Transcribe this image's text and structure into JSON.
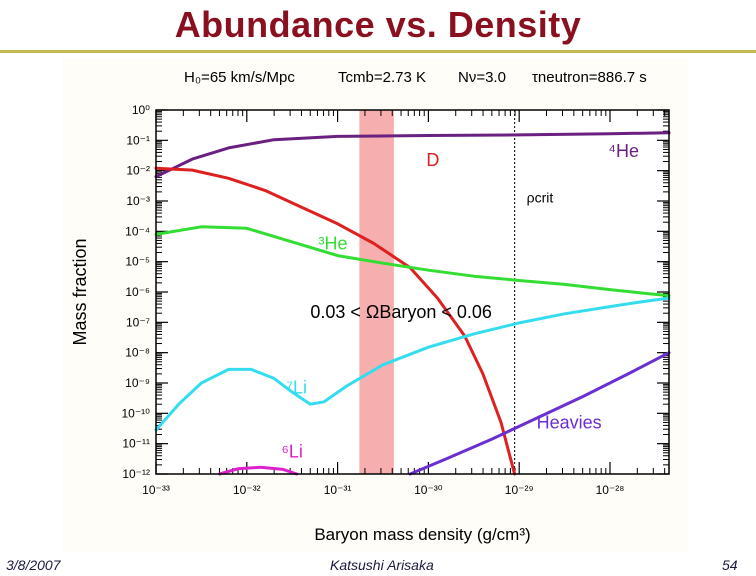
{
  "slide": {
    "title": "Abundance vs. Density",
    "footer_date": "3/8/2007",
    "footer_author": "Katsushi Arisaka",
    "page_number": "54"
  },
  "chart_data": {
    "type": "line",
    "title": "",
    "xlabel": "Baryon mass density (g/cm³)",
    "ylabel": "Mass fraction",
    "x_scale": "log",
    "y_scale": "log",
    "xlim_exp": [
      -33,
      -27.35
    ],
    "ylim_exp": [
      -12,
      0
    ],
    "header": {
      "H0": "H₀=65 km/s/Mpc",
      "Tcmb": "Tcmb=2.73 K",
      "Nnu": "Nν=3.0",
      "tau": "τneutron=886.7 s"
    },
    "x_ticks": [
      {
        "exp": -33,
        "label": "10⁻³³"
      },
      {
        "exp": -32,
        "label": "10⁻³²"
      },
      {
        "exp": -31,
        "label": "10⁻³¹"
      },
      {
        "exp": -30,
        "label": "10⁻³⁰"
      },
      {
        "exp": -29,
        "label": "10⁻²⁹"
      },
      {
        "exp": -28,
        "label": "10⁻²⁸"
      }
    ],
    "y_ticks": [
      {
        "exp": 0,
        "label": "10⁰"
      },
      {
        "exp": -1,
        "label": "10⁻¹"
      },
      {
        "exp": -2,
        "label": "10⁻²"
      },
      {
        "exp": -3,
        "label": "10⁻³"
      },
      {
        "exp": -4,
        "label": "10⁻⁴"
      },
      {
        "exp": -5,
        "label": "10⁻⁵"
      },
      {
        "exp": -6,
        "label": "10⁻⁶"
      },
      {
        "exp": -7,
        "label": "10⁻⁷"
      },
      {
        "exp": -8,
        "label": "10⁻⁸"
      },
      {
        "exp": -9,
        "label": "10⁻⁹"
      },
      {
        "exp": -10,
        "label": "10⁻¹⁰"
      },
      {
        "exp": -11,
        "label": "10⁻¹¹"
      },
      {
        "exp": -12,
        "label": "10⁻¹²"
      }
    ],
    "band": {
      "x_exp": [
        -30.76,
        -30.38
      ],
      "color": "#f4a0a0"
    },
    "rho_crit": {
      "x_exp": -29.05,
      "label": "ρcrit"
    },
    "annotation": "0.03 < ΩBaryon < 0.06",
    "series": [
      {
        "name": "⁴He",
        "color": "#6a2080",
        "points": [
          [
            -33,
            -2.2
          ],
          [
            -32.6,
            -1.62
          ],
          [
            -32.2,
            -1.25
          ],
          [
            -31.7,
            -0.98
          ],
          [
            -31,
            -0.87
          ],
          [
            -30,
            -0.84
          ],
          [
            -29,
            -0.82
          ],
          [
            -28,
            -0.78
          ],
          [
            -27.35,
            -0.75
          ]
        ]
      },
      {
        "name": "D",
        "color": "#dd2020",
        "points": [
          [
            -33,
            -1.92
          ],
          [
            -32.6,
            -1.98
          ],
          [
            -32.2,
            -2.25
          ],
          [
            -31.8,
            -2.65
          ],
          [
            -31.4,
            -3.2
          ],
          [
            -31,
            -3.75
          ],
          [
            -30.6,
            -4.4
          ],
          [
            -30.2,
            -5.2
          ],
          [
            -29.9,
            -6.2
          ],
          [
            -29.6,
            -7.45
          ],
          [
            -29.4,
            -8.7
          ],
          [
            -29.2,
            -10.3
          ],
          [
            -29.05,
            -12
          ]
        ]
      },
      {
        "name": "³He",
        "color": "#33dd33",
        "points": [
          [
            -33,
            -4.1
          ],
          [
            -32.5,
            -3.85
          ],
          [
            -32,
            -3.9
          ],
          [
            -31.5,
            -4.35
          ],
          [
            -31,
            -4.8
          ],
          [
            -30.5,
            -5.05
          ],
          [
            -30,
            -5.28
          ],
          [
            -29.5,
            -5.48
          ],
          [
            -29,
            -5.62
          ],
          [
            -28.5,
            -5.75
          ],
          [
            -28,
            -5.92
          ],
          [
            -27.6,
            -6.05
          ],
          [
            -27.35,
            -6.12
          ]
        ]
      },
      {
        "name": "⁷Li",
        "color": "#33ddee",
        "points": [
          [
            -33,
            -10.55
          ],
          [
            -32.75,
            -9.7
          ],
          [
            -32.5,
            -9.0
          ],
          [
            -32.2,
            -8.55
          ],
          [
            -31.95,
            -8.55
          ],
          [
            -31.7,
            -8.85
          ],
          [
            -31.5,
            -9.3
          ],
          [
            -31.3,
            -9.7
          ],
          [
            -31.15,
            -9.62
          ],
          [
            -30.9,
            -9.1
          ],
          [
            -30.5,
            -8.4
          ],
          [
            -30,
            -7.82
          ],
          [
            -29.5,
            -7.38
          ],
          [
            -29,
            -7.02
          ],
          [
            -28.5,
            -6.72
          ],
          [
            -28,
            -6.48
          ],
          [
            -27.6,
            -6.3
          ],
          [
            -27.35,
            -6.2
          ]
        ]
      },
      {
        "name": "⁶Li",
        "color": "#dd22cc",
        "points": [
          [
            -32.3,
            -12
          ],
          [
            -32.1,
            -11.83
          ],
          [
            -31.85,
            -11.78
          ],
          [
            -31.6,
            -11.85
          ],
          [
            -31.45,
            -12
          ]
        ]
      },
      {
        "name": "Heavies",
        "color": "#6a2fd0",
        "points": [
          [
            -30.2,
            -12
          ],
          [
            -29.8,
            -11.5
          ],
          [
            -29.3,
            -10.85
          ],
          [
            -28.8,
            -10.15
          ],
          [
            -28.3,
            -9.45
          ],
          [
            -27.8,
            -8.7
          ],
          [
            -27.35,
            -8.0
          ]
        ]
      }
    ],
    "series_labels": [
      {
        "name": "D",
        "x_exp": -29.95,
        "y_exp": -1.85
      },
      {
        "name": "⁴He",
        "x_exp": -27.85,
        "y_exp": -1.55
      },
      {
        "name": "³He",
        "x_exp": -31.05,
        "y_exp": -4.6
      },
      {
        "name": "⁷Li",
        "x_exp": -31.45,
        "y_exp": -9.35
      },
      {
        "name": "⁶Li",
        "x_exp": -31.5,
        "y_exp": -11.45
      },
      {
        "name": "Heavies",
        "x_exp": -28.45,
        "y_exp": -10.5
      }
    ]
  }
}
